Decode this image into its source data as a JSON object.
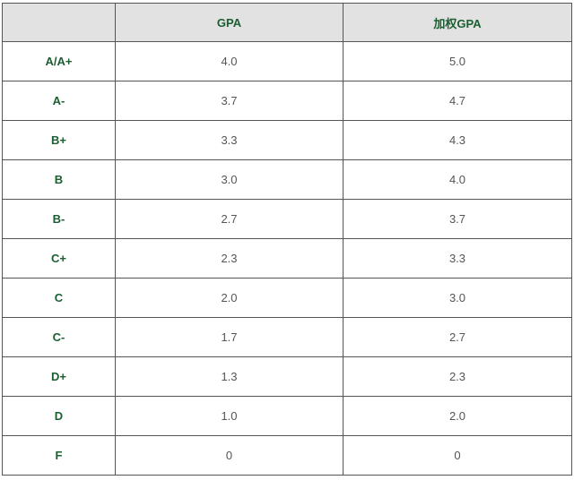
{
  "table": {
    "headers": [
      "",
      "GPA",
      "加权GPA"
    ],
    "rows": [
      {
        "grade": "A/A+",
        "gpa": "4.0",
        "weighted": "5.0"
      },
      {
        "grade": "A-",
        "gpa": "3.7",
        "weighted": "4.7"
      },
      {
        "grade": "B+",
        "gpa": "3.3",
        "weighted": "4.3"
      },
      {
        "grade": "B",
        "gpa": "3.0",
        "weighted": "4.0"
      },
      {
        "grade": "B-",
        "gpa": "2.7",
        "weighted": "3.7"
      },
      {
        "grade": "C+",
        "gpa": "2.3",
        "weighted": "3.3"
      },
      {
        "grade": "C",
        "gpa": "2.0",
        "weighted": "3.0"
      },
      {
        "grade": "C-",
        "gpa": "1.7",
        "weighted": "2.7"
      },
      {
        "grade": "D+",
        "gpa": "1.3",
        "weighted": "2.3"
      },
      {
        "grade": "D",
        "gpa": "1.0",
        "weighted": "2.0"
      },
      {
        "grade": "F",
        "gpa": "0",
        "weighted": "0"
      }
    ]
  },
  "colors": {
    "header_background": "#e2e2e2",
    "label_text": "#1b5e32",
    "value_text": "#555555",
    "border": "#555555"
  }
}
